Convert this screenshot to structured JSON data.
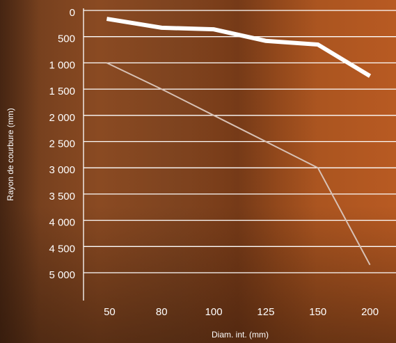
{
  "chart_data": {
    "type": "line",
    "y_label": "Rayon de courbure (mm)",
    "x_label": "Diam. int. (mm)",
    "categories": [
      "50",
      "80",
      "100",
      "125",
      "150",
      "200"
    ],
    "series": [
      {
        "color": "#ffffff",
        "values": [
          160,
          330,
          360,
          580,
          650,
          1250
        ]
      },
      {
        "color": "#d8c2b6",
        "values": [
          1000,
          1500,
          2000,
          2500,
          3000,
          4850
        ]
      }
    ],
    "ylim": [
      0,
      5000
    ],
    "y_inverted": true,
    "yticks": [
      0,
      500,
      {
        "value": 1000,
        "label": "1 000"
      },
      {
        "value": 1500,
        "label": "1 500"
      },
      {
        "value": 2000,
        "label": "2 000"
      },
      {
        "value": 2500,
        "label": "2 500"
      },
      {
        "value": 3000,
        "label": "3 000"
      },
      {
        "value": 3500,
        "label": "3 500"
      },
      {
        "value": 4000,
        "label": "4 000"
      },
      {
        "value": 4500,
        "label": "4 500"
      },
      {
        "value": 5000,
        "label": "5 000"
      }
    ],
    "grid": true
  }
}
